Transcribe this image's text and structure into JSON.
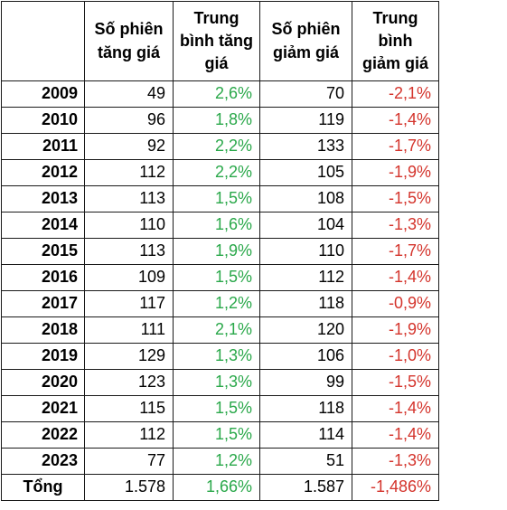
{
  "headers": [
    "",
    "Số phiên tăng giá",
    "Trung bình tăng giá",
    "Số phiên giảm giá",
    "Trung bình giảm giá"
  ],
  "rows": [
    {
      "year": "2009",
      "up_sessions": "49",
      "avg_up": "2,6%",
      "down_sessions": "70",
      "avg_down": "-2,1%"
    },
    {
      "year": "2010",
      "up_sessions": "96",
      "avg_up": "1,8%",
      "down_sessions": "119",
      "avg_down": "-1,4%"
    },
    {
      "year": "2011",
      "up_sessions": "92",
      "avg_up": "2,2%",
      "down_sessions": "133",
      "avg_down": "-1,7%"
    },
    {
      "year": "2012",
      "up_sessions": "112",
      "avg_up": "2,2%",
      "down_sessions": "105",
      "avg_down": "-1,9%"
    },
    {
      "year": "2013",
      "up_sessions": "113",
      "avg_up": "1,5%",
      "down_sessions": "108",
      "avg_down": "-1,5%"
    },
    {
      "year": "2014",
      "up_sessions": "110",
      "avg_up": "1,6%",
      "down_sessions": "104",
      "avg_down": "-1,3%"
    },
    {
      "year": "2015",
      "up_sessions": "113",
      "avg_up": "1,9%",
      "down_sessions": "110",
      "avg_down": "-1,7%"
    },
    {
      "year": "2016",
      "up_sessions": "109",
      "avg_up": "1,5%",
      "down_sessions": "112",
      "avg_down": "-1,4%"
    },
    {
      "year": "2017",
      "up_sessions": "117",
      "avg_up": "1,2%",
      "down_sessions": "118",
      "avg_down": "-0,9%"
    },
    {
      "year": "2018",
      "up_sessions": "111",
      "avg_up": "2,1%",
      "down_sessions": "120",
      "avg_down": "-1,9%"
    },
    {
      "year": "2019",
      "up_sessions": "129",
      "avg_up": "1,3%",
      "down_sessions": "106",
      "avg_down": "-1,0%"
    },
    {
      "year": "2020",
      "up_sessions": "123",
      "avg_up": "1,3%",
      "down_sessions": "99",
      "avg_down": "-1,5%"
    },
    {
      "year": "2021",
      "up_sessions": "115",
      "avg_up": "1,5%",
      "down_sessions": "118",
      "avg_down": "-1,4%"
    },
    {
      "year": "2022",
      "up_sessions": "112",
      "avg_up": "1,5%",
      "down_sessions": "114",
      "avg_down": "-1,4%"
    },
    {
      "year": "2023",
      "up_sessions": "77",
      "avg_up": "1,2%",
      "down_sessions": "51",
      "avg_down": "-1,3%"
    }
  ],
  "total": {
    "label": "Tổng",
    "up_sessions": "1.578",
    "avg_up": "1,66%",
    "down_sessions": "1.587",
    "avg_down": "-1,486%"
  },
  "colors": {
    "positive": "#2aa84a",
    "negative": "#d4342c",
    "border": "#1a1a1a"
  }
}
